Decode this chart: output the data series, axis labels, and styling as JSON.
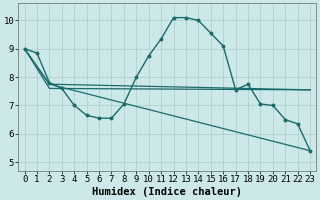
{
  "xlabel": "Humidex (Indice chaleur)",
  "xlim": [
    -0.5,
    23.5
  ],
  "ylim": [
    4.7,
    10.6
  ],
  "xticks": [
    0,
    1,
    2,
    3,
    4,
    5,
    6,
    7,
    8,
    9,
    10,
    11,
    12,
    13,
    14,
    15,
    16,
    17,
    18,
    19,
    20,
    21,
    22,
    23
  ],
  "yticks": [
    5,
    6,
    7,
    8,
    9,
    10
  ],
  "bg_color": "#cde8e8",
  "line_color": "#1a6b6b",
  "grid_color": "#b0d0d0",
  "peaked_x": [
    0,
    1,
    2,
    3,
    4,
    5,
    6,
    7,
    8,
    9,
    10,
    11,
    12,
    13,
    14,
    15,
    16,
    17,
    18,
    19,
    20,
    21,
    22,
    23
  ],
  "peaked_y": [
    9.0,
    8.85,
    7.8,
    7.6,
    7.0,
    6.65,
    6.55,
    6.55,
    7.05,
    8.0,
    8.75,
    9.35,
    10.1,
    10.1,
    10.0,
    9.55,
    9.1,
    7.55,
    7.75,
    7.05,
    7.0,
    6.5,
    6.35,
    5.4
  ],
  "line2_x": [
    0,
    2,
    23
  ],
  "line2_y": [
    9.0,
    7.75,
    7.55
  ],
  "line3_x": [
    0,
    2,
    23
  ],
  "line3_y": [
    9.0,
    7.6,
    7.55
  ],
  "line4_x": [
    0,
    2,
    23
  ],
  "line4_y": [
    9.0,
    7.75,
    5.4
  ],
  "tick_fontsize": 6.5,
  "xlabel_fontsize": 7.5
}
